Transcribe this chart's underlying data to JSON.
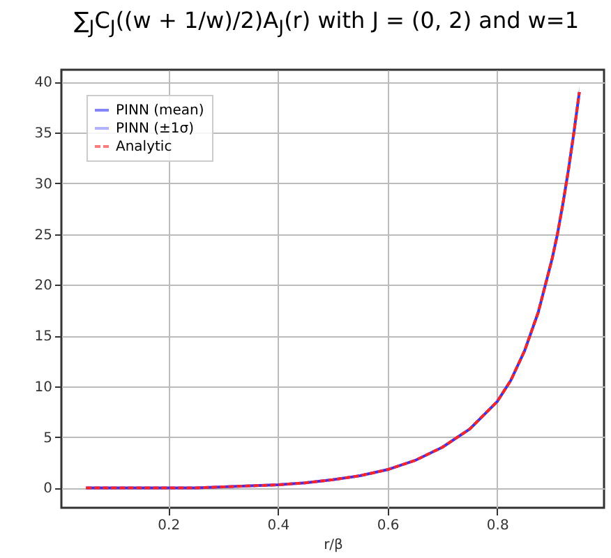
{
  "chart_data": {
    "type": "line",
    "title": "∑$_{J}$C$_{J}$((w + 1/w)/2)A$_{J}$(r) with J =  (0, 2) and w=1",
    "xlabel": "r/β",
    "x": [
      0.05,
      0.1,
      0.15,
      0.2,
      0.25,
      0.3,
      0.35,
      0.4,
      0.45,
      0.5,
      0.55,
      0.6,
      0.65,
      0.7,
      0.75,
      0.8,
      0.825,
      0.85,
      0.875,
      0.9,
      0.91,
      0.92,
      0.93,
      0.94,
      0.95
    ],
    "series": [
      {
        "name": "PINN (mean)",
        "color": "#3333ff",
        "line_style": "solid",
        "values": [
          0,
          0,
          0,
          0,
          0,
          0.1,
          0.2,
          0.3,
          0.5,
          0.8,
          1.2,
          1.8,
          2.7,
          4,
          5.8,
          8.5,
          10.6,
          13.5,
          17.3,
          22.5,
          25,
          28,
          31.3,
          35,
          39
        ]
      },
      {
        "name": "PINN (±1σ)",
        "type": "area",
        "color": "#8080ff",
        "values": [
          null,
          null,
          null,
          null,
          null,
          null,
          null,
          null,
          null,
          null,
          null,
          null,
          null,
          null,
          null,
          null,
          null,
          null,
          null,
          null,
          null,
          null,
          null,
          null,
          null
        ],
        "lower": [
          0,
          0,
          0,
          0,
          0,
          0.1,
          0.2,
          0.3,
          0.5,
          0.8,
          1.2,
          1.8,
          2.7,
          4,
          5.8,
          8.4,
          10.5,
          13.3,
          17.1,
          22.2,
          24.6,
          27.6,
          30.8,
          34.4,
          38.4
        ],
        "upper": [
          0,
          0,
          0,
          0,
          0,
          0.1,
          0.2,
          0.3,
          0.5,
          0.8,
          1.2,
          1.8,
          2.7,
          4,
          5.8,
          8.6,
          10.7,
          13.7,
          17.5,
          22.8,
          25.4,
          28.4,
          31.8,
          35.6,
          39.6
        ]
      },
      {
        "name": "Analytic",
        "color": "#ff2222",
        "line_style": "dashed",
        "values": [
          0,
          0,
          0,
          0,
          0,
          0.1,
          0.2,
          0.3,
          0.5,
          0.8,
          1.2,
          1.8,
          2.7,
          4,
          5.8,
          8.5,
          10.6,
          13.5,
          17.3,
          22.5,
          25,
          28,
          31.3,
          35,
          39
        ]
      }
    ],
    "xlim": [
      0.005,
      0.995
    ],
    "ylim": [
      -1.96,
      41.2
    ],
    "xticks": [
      0.2,
      0.4,
      0.6,
      0.8
    ],
    "yticks": [
      0,
      5,
      10,
      15,
      20,
      25,
      30,
      35,
      40
    ],
    "grid": true,
    "legend": "top left"
  }
}
